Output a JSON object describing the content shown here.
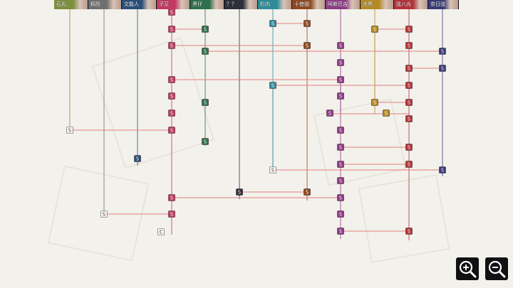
{
  "characters": [
    {
      "name": "石丸",
      "color": "#7e8f3e"
    },
    {
      "name": "桐島",
      "color": "#6f6f6f"
    },
    {
      "name": "文能人",
      "color": "#2a4f79"
    },
    {
      "name": "子又",
      "color": "#c23a63"
    },
    {
      "name": "黒仔",
      "color": "#2e6f4c"
    },
    {
      "name": "？？",
      "color": "#2d2f3a"
    },
    {
      "name": "杉内",
      "color": "#2f8d9a"
    },
    {
      "name": "十徳畑",
      "color": "#8f4a20"
    },
    {
      "name": "阿斯巴吉",
      "color": "#8e3c86"
    },
    {
      "name": "犬黒",
      "color": "#b38a26"
    },
    {
      "name": "弦八光",
      "color": "#b2343a"
    },
    {
      "name": "奈日弦",
      "color": "#3a3a78"
    }
  ],
  "node_letter": "S",
  "node_letter_alt": "C",
  "zoom_in": "zoom-in",
  "zoom_out": "zoom-out"
}
